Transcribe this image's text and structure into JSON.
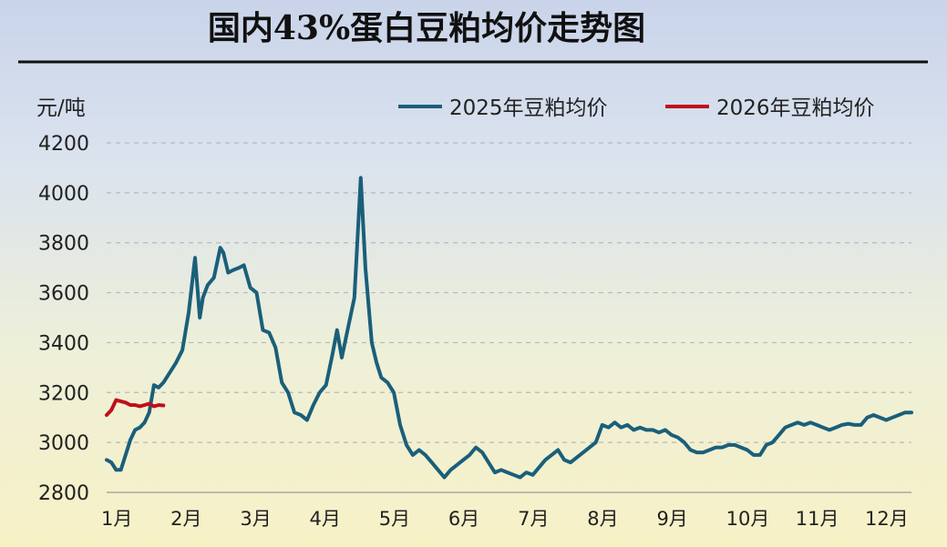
{
  "chart_data": {
    "type": "line",
    "title": "国内43%蛋白豆粕均价走势图",
    "ylabel": "元/吨",
    "ylim": [
      2800,
      4200
    ],
    "yticks": [
      2800,
      3000,
      3200,
      3400,
      3600,
      3800,
      4000,
      4200
    ],
    "x_axis": "week of year",
    "xlim": [
      1,
      52
    ],
    "xtick_labels": [
      "1月",
      "2月",
      "3月",
      "4月",
      "5月",
      "6月",
      "7月",
      "8月",
      "9月",
      "10月",
      "11月",
      "12月"
    ],
    "xtick_positions": [
      1,
      5.4,
      9.8,
      14.2,
      18.6,
      23,
      27.4,
      31.8,
      36.2,
      40.6,
      45,
      49.4
    ],
    "legend_position": "top-right",
    "grid": true,
    "series": [
      {
        "name": "2025年豆粕均价",
        "color": "#1a5f7a",
        "x": [
          1,
          1.3,
          1.6,
          1.9,
          2.2,
          2.5,
          2.8,
          3.1,
          3.4,
          3.7,
          4,
          4.3,
          4.6,
          5,
          5.4,
          5.8,
          6.2,
          6.6,
          6.9,
          7.1,
          7.4,
          7.8,
          8.2,
          8.4,
          8.7,
          9,
          9.4,
          9.7,
          10.1,
          10.5,
          10.9,
          11.3,
          11.7,
          12.1,
          12.5,
          12.9,
          13.3,
          13.7,
          14.1,
          14.5,
          14.9,
          15.3,
          15.6,
          15.9,
          16.3,
          16.7,
          17.1,
          17.4,
          17.6,
          17.8,
          18.1,
          18.4,
          18.8,
          19.2,
          19.6,
          20,
          20.4,
          20.8,
          21.2,
          21.6,
          22,
          22.4,
          22.8,
          23.2,
          23.6,
          24,
          24.4,
          24.8,
          25.2,
          25.6,
          26,
          26.4,
          26.8,
          27.2,
          27.6,
          28,
          28.4,
          28.8,
          29.2,
          29.6,
          30,
          30.4,
          30.8,
          31.2,
          31.6,
          32,
          32.4,
          32.8,
          33.2,
          33.6,
          34,
          34.4,
          34.8,
          35.2,
          35.6,
          36,
          36.4,
          36.8,
          37.2,
          37.6,
          38,
          38.4,
          38.8,
          39.2,
          39.6,
          40,
          40.4,
          40.8,
          41.2,
          41.6,
          42,
          42.4,
          42.8,
          43.2,
          43.6,
          44,
          44.4,
          44.8,
          45.2,
          45.6,
          46,
          46.4,
          46.8,
          47.2,
          47.6,
          48,
          48.4,
          48.8,
          49.2,
          49.6,
          50,
          50.4,
          50.8,
          51.2,
          51.6,
          52
        ],
        "values": [
          2930,
          2920,
          2890,
          2890,
          2950,
          3010,
          3050,
          3060,
          3080,
          3120,
          3230,
          3220,
          3240,
          3280,
          3320,
          3370,
          3520,
          3740,
          3500,
          3580,
          3630,
          3660,
          3780,
          3760,
          3680,
          3690,
          3700,
          3710,
          3620,
          3600,
          3450,
          3440,
          3380,
          3240,
          3200,
          3120,
          3110,
          3090,
          3150,
          3200,
          3230,
          3350,
          3450,
          3340,
          3460,
          3580,
          4060,
          3700,
          3550,
          3400,
          3320,
          3260,
          3240,
          3200,
          3070,
          2990,
          2950,
          2970,
          2950,
          2920,
          2890,
          2860,
          2890,
          2910,
          2930,
          2950,
          2980,
          2960,
          2920,
          2880,
          2890,
          2880,
          2870,
          2860,
          2880,
          2870,
          2900,
          2930,
          2950,
          2970,
          2930,
          2920,
          2940,
          2960,
          2980,
          3000,
          3070,
          3060,
          3080,
          3060,
          3070,
          3050,
          3060,
          3050,
          3050,
          3040,
          3050,
          3030,
          3020,
          3000,
          2970,
          2960,
          2960,
          2970,
          2980,
          2980,
          2990,
          2990,
          2980,
          2970,
          2950,
          2950,
          2990,
          3000,
          3030,
          3060,
          3070,
          3080,
          3070,
          3080,
          3070,
          3060,
          3050,
          3060,
          3070,
          3075,
          3070,
          3070,
          3100,
          3110,
          3100,
          3090,
          3100,
          3110,
          3120,
          3120
        ]
      },
      {
        "name": "2026年豆粕均价",
        "color": "#c0101a",
        "x": [
          1,
          1.3,
          1.6,
          1.9,
          2.2,
          2.5,
          2.8,
          3.1,
          3.4,
          3.7,
          4,
          4.3,
          4.6
        ],
        "values": [
          3110,
          3130,
          3170,
          3165,
          3160,
          3150,
          3150,
          3145,
          3150,
          3155,
          3145,
          3150,
          3148
        ]
      }
    ]
  }
}
